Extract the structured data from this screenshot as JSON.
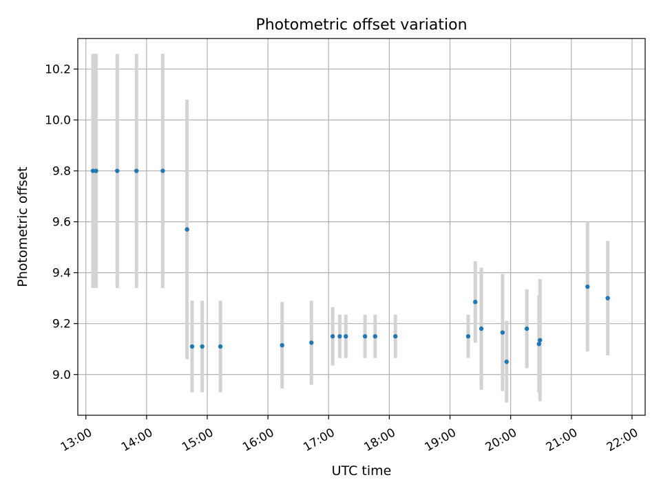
{
  "chart_data": {
    "type": "scatter",
    "title": "Photometric offset variation",
    "xlabel": "UTC time",
    "ylabel": "Photometric offset",
    "x_ticks": [
      "13:00",
      "14:00",
      "15:00",
      "16:00",
      "17:00",
      "18:00",
      "19:00",
      "20:00",
      "21:00",
      "22:00"
    ],
    "y_ticks": [
      9.0,
      9.2,
      9.4,
      9.6,
      9.8,
      10.0,
      10.2
    ],
    "xlim": [
      "12:52",
      "22:13"
    ],
    "ylim": [
      8.84,
      10.32
    ],
    "grid": true,
    "point_color": "#1f77b4",
    "errorbar_color": "#d3d3d3",
    "points": [
      {
        "x": "13:07",
        "y": 9.8,
        "err": 0.46
      },
      {
        "x": "13:10",
        "y": 9.8,
        "err": 0.46
      },
      {
        "x": "13:31",
        "y": 9.8,
        "err": 0.46
      },
      {
        "x": "13:50",
        "y": 9.8,
        "err": 0.46
      },
      {
        "x": "14:16",
        "y": 9.8,
        "err": 0.46
      },
      {
        "x": "14:40",
        "y": 9.57,
        "err": 0.51
      },
      {
        "x": "14:45",
        "y": 9.11,
        "err": 0.18
      },
      {
        "x": "14:55",
        "y": 9.11,
        "err": 0.18
      },
      {
        "x": "15:13",
        "y": 9.11,
        "err": 0.18
      },
      {
        "x": "16:14",
        "y": 9.115,
        "err": 0.17
      },
      {
        "x": "16:43",
        "y": 9.125,
        "err": 0.165
      },
      {
        "x": "17:04",
        "y": 9.15,
        "err": 0.115
      },
      {
        "x": "17:11",
        "y": 9.15,
        "err": 0.085
      },
      {
        "x": "17:17",
        "y": 9.15,
        "err": 0.085
      },
      {
        "x": "17:36",
        "y": 9.15,
        "err": 0.085
      },
      {
        "x": "17:46",
        "y": 9.15,
        "err": 0.085
      },
      {
        "x": "18:06",
        "y": 9.15,
        "err": 0.085
      },
      {
        "x": "19:18",
        "y": 9.15,
        "err": 0.085
      },
      {
        "x": "19:25",
        "y": 9.285,
        "err": 0.16
      },
      {
        "x": "19:31",
        "y": 9.18,
        "err": 0.24
      },
      {
        "x": "19:52",
        "y": 9.165,
        "err": 0.23
      },
      {
        "x": "19:56",
        "y": 9.05,
        "err": 0.16
      },
      {
        "x": "20:16",
        "y": 9.18,
        "err": 0.155
      },
      {
        "x": "20:28",
        "y": 9.12,
        "err": 0.19
      },
      {
        "x": "20:29",
        "y": 9.135,
        "err": 0.24
      },
      {
        "x": "21:16",
        "y": 9.345,
        "err": 0.255
      },
      {
        "x": "21:36",
        "y": 9.3,
        "err": 0.225
      }
    ]
  }
}
